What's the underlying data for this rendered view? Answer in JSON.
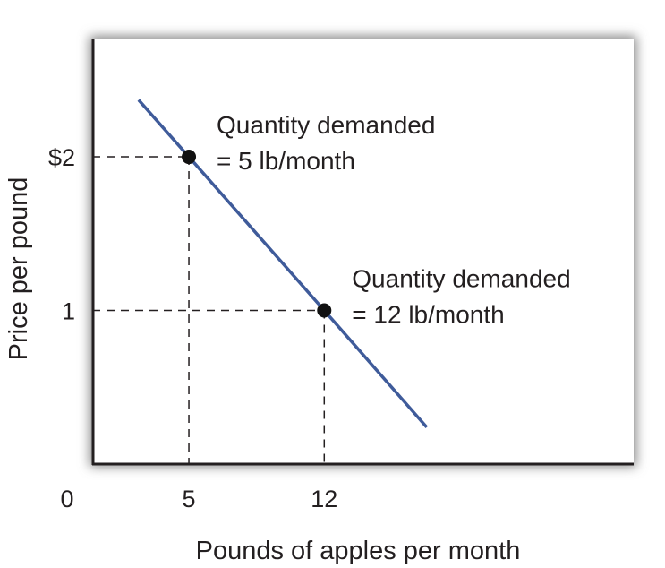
{
  "chart_data": {
    "type": "line",
    "title": "",
    "xlabel": "Pounds of apples per month",
    "ylabel": "Price per pound",
    "xlim": [
      0,
      28
    ],
    "ylim": [
      0,
      2.77
    ],
    "x_ticks": [
      {
        "value": 0,
        "label": "0"
      },
      {
        "value": 5,
        "label": "5"
      },
      {
        "value": 12,
        "label": "12"
      }
    ],
    "y_ticks": [
      {
        "value": 2,
        "label": "$2"
      },
      {
        "value": 1,
        "label": "1"
      }
    ],
    "grid": false,
    "series": [
      {
        "x": [
          2.4,
          5,
          12,
          17.3
        ],
        "y": [
          2.37,
          2,
          1,
          0.24
        ],
        "color": "#3f5b9a"
      }
    ],
    "points": [
      {
        "x": 5,
        "y": 2,
        "label_line1": "Quantity demanded",
        "label_line2": "= 5 lb/month"
      },
      {
        "x": 12,
        "y": 1,
        "label_line1": "Quantity demanded",
        "label_line2": "= 12 lb/month"
      }
    ]
  }
}
